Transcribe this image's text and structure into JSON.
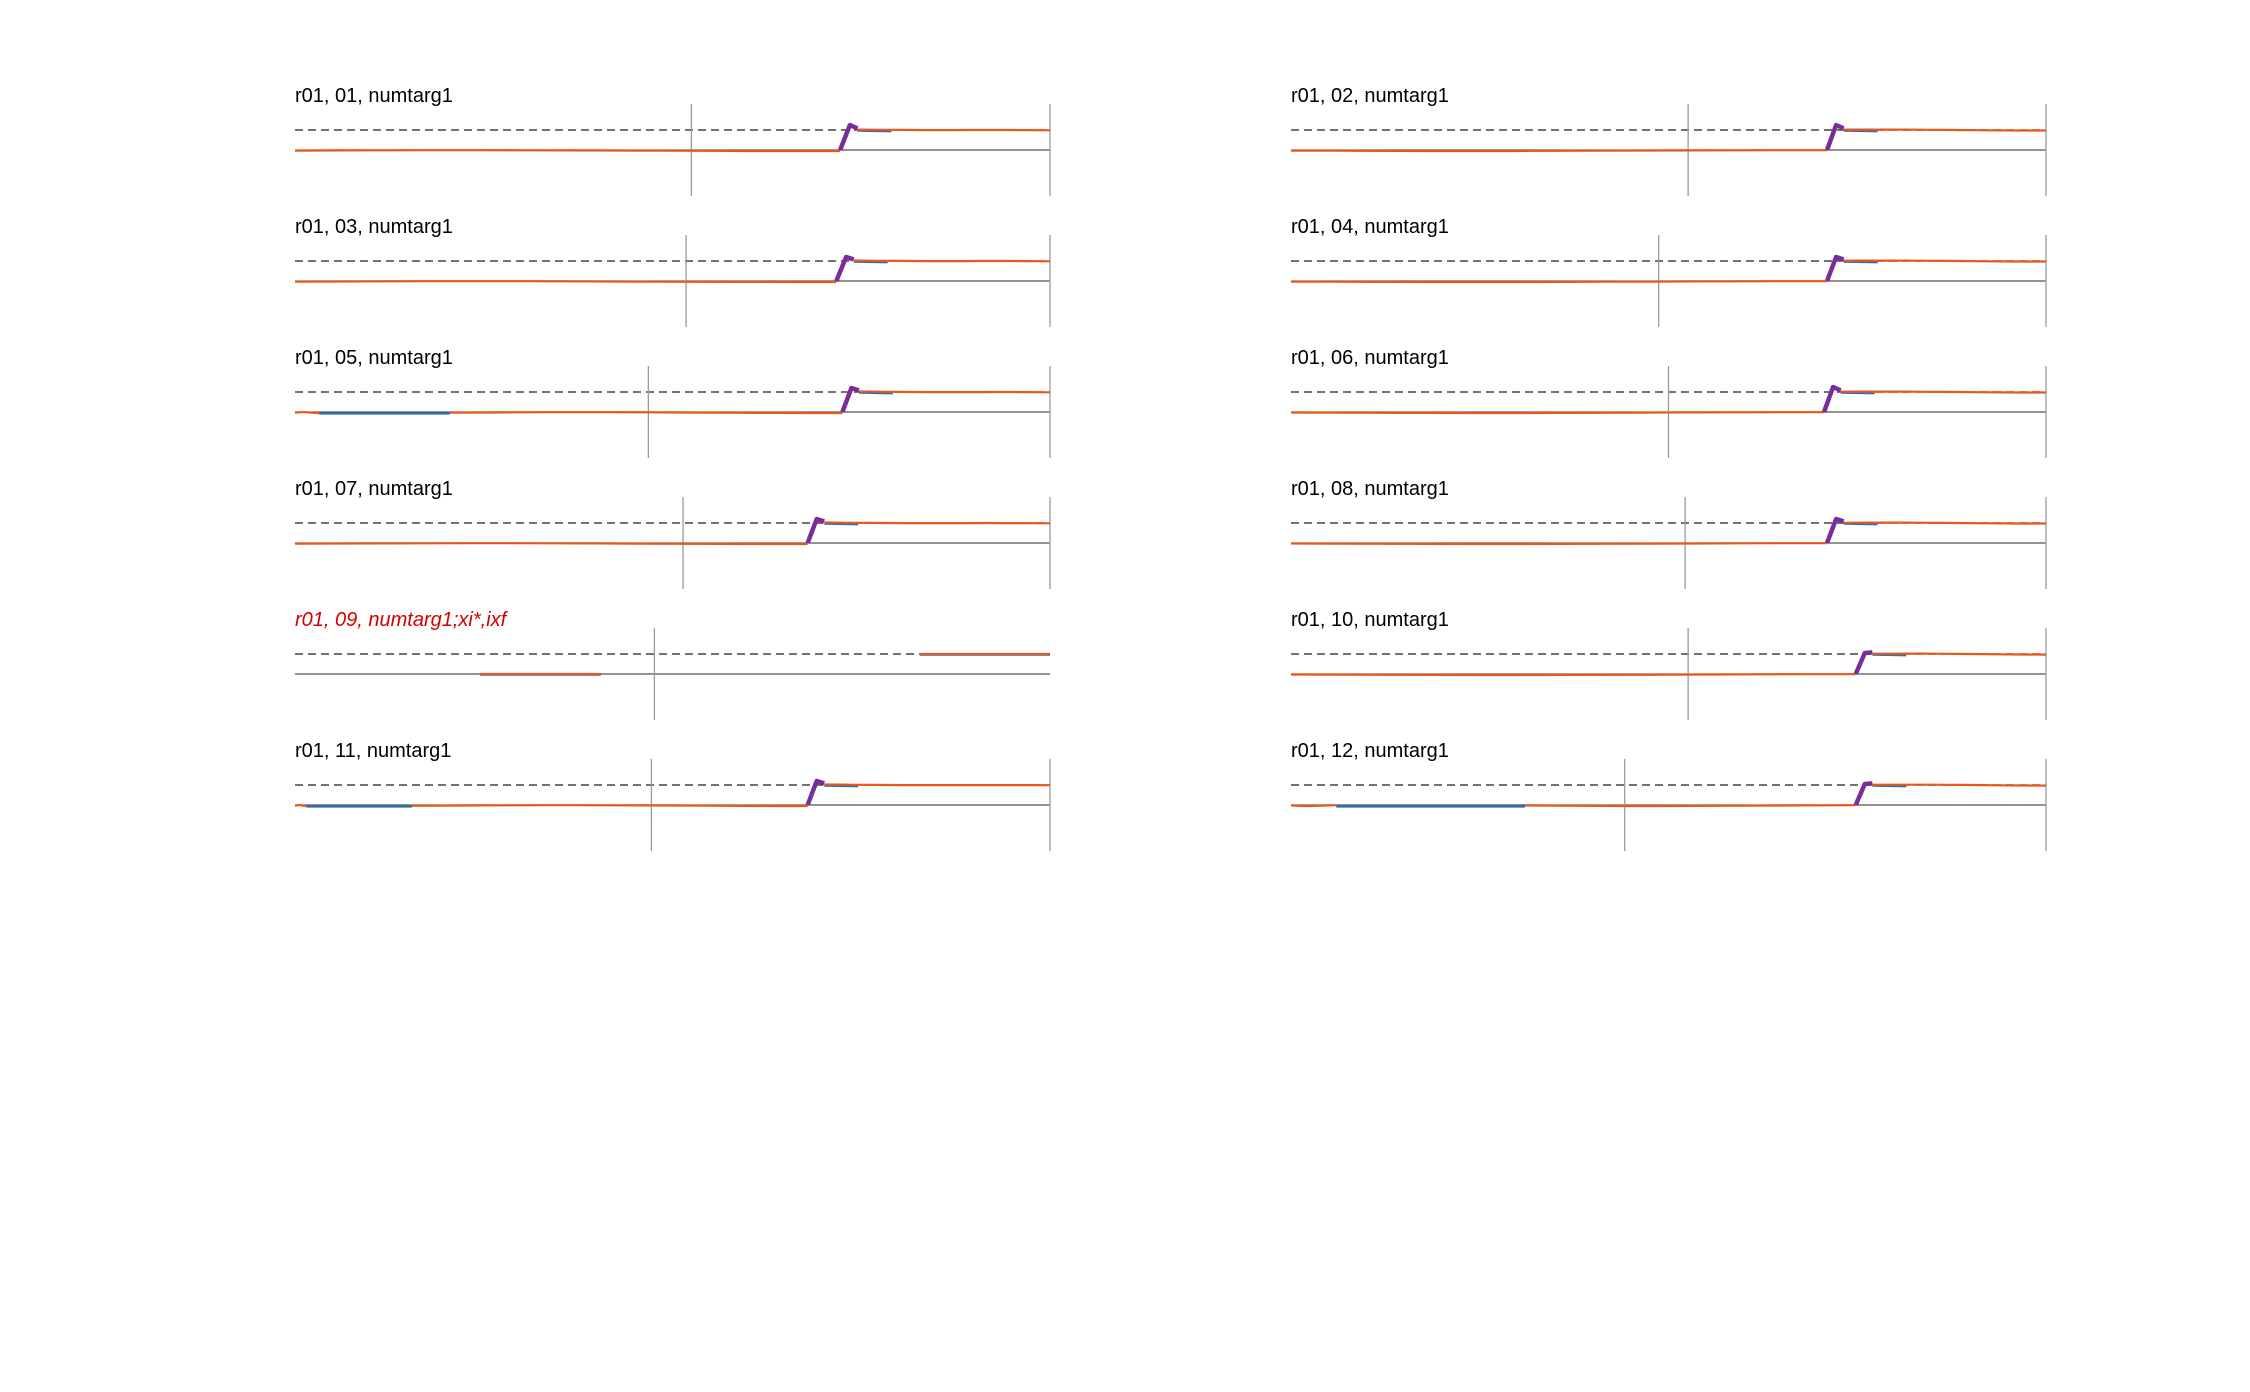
{
  "colors": {
    "trace_blue": "#2e6fb4",
    "trace_orange": "#e8581c",
    "transition_purple": "#7a2c9a",
    "flagged_title": "#d40000",
    "baseline": "#555555",
    "target_dashed": "#444444",
    "marker_line": "#9a9a9a"
  },
  "chart_data": [
    {
      "type": "line",
      "title": "r01, 01, numtarg1",
      "flagged": false,
      "xlim": [
        0,
        1
      ],
      "ylim": [
        0,
        1
      ],
      "baseline": 0,
      "target": 1,
      "markers": [
        0.525,
        1.0
      ],
      "gaps": [],
      "jump": {
        "start": 0.722,
        "end": 0.735,
        "peak": 1.25
      }
    },
    {
      "type": "line",
      "title": "r01, 02, numtarg1",
      "flagged": false,
      "xlim": [
        0,
        1
      ],
      "ylim": [
        0,
        1
      ],
      "baseline": 0,
      "target": 1,
      "markers": [
        0.526,
        1.0
      ],
      "gaps": [],
      "jump": {
        "start": 0.71,
        "end": 0.722,
        "peak": 1.25
      }
    },
    {
      "type": "line",
      "title": "r01, 03, numtarg1",
      "flagged": false,
      "xlim": [
        0,
        1
      ],
      "ylim": [
        0,
        1
      ],
      "baseline": 0,
      "target": 1,
      "markers": [
        0.518,
        1.0
      ],
      "gaps": [],
      "jump": {
        "start": 0.717,
        "end": 0.73,
        "peak": 1.2
      }
    },
    {
      "type": "line",
      "title": "r01, 04, numtarg1",
      "flagged": false,
      "xlim": [
        0,
        1
      ],
      "ylim": [
        0,
        1
      ],
      "baseline": 0,
      "target": 1,
      "markers": [
        0.487,
        1.0
      ],
      "gaps": [],
      "jump": {
        "start": 0.71,
        "end": 0.722,
        "peak": 1.2
      }
    },
    {
      "type": "line",
      "title": "r01, 05, numtarg1",
      "flagged": false,
      "xlim": [
        0,
        1
      ],
      "ylim": [
        0,
        1
      ],
      "baseline": 0,
      "target": 1,
      "markers": [
        0.468,
        1.0
      ],
      "gaps": [
        [
          0.032,
          0.205
        ]
      ],
      "jump": {
        "start": 0.725,
        "end": 0.737,
        "peak": 1.2
      }
    },
    {
      "type": "line",
      "title": "r01, 06, numtarg1",
      "flagged": false,
      "xlim": [
        0,
        1
      ],
      "ylim": [
        0,
        1
      ],
      "baseline": 0,
      "target": 1,
      "markers": [
        0.5,
        1.0
      ],
      "gaps": [],
      "jump": {
        "start": 0.706,
        "end": 0.718,
        "peak": 1.25
      }
    },
    {
      "type": "line",
      "title": "r01, 07, numtarg1",
      "flagged": false,
      "xlim": [
        0,
        1
      ],
      "ylim": [
        0,
        1
      ],
      "baseline": 0,
      "target": 1,
      "markers": [
        0.514,
        1.0
      ],
      "gaps": [],
      "jump": {
        "start": 0.679,
        "end": 0.691,
        "peak": 1.2
      }
    },
    {
      "type": "line",
      "title": "r01, 08, numtarg1",
      "flagged": false,
      "xlim": [
        0,
        1
      ],
      "ylim": [
        0,
        1
      ],
      "baseline": 0,
      "target": 1,
      "markers": [
        0.522,
        1.0
      ],
      "gaps": [],
      "jump": {
        "start": 0.71,
        "end": 0.722,
        "peak": 1.2
      }
    },
    {
      "type": "line",
      "title": "r01, 09, numtarg1;xi*,ixf",
      "flagged": true,
      "xlim": [
        0,
        1
      ],
      "ylim": [
        0,
        1
      ],
      "baseline": 0,
      "target": 1,
      "markers": [
        0.476
      ],
      "segments": [
        {
          "x": [
            0.245,
            0.405
          ],
          "y": 0
        },
        {
          "x": [
            0.828,
            1.0
          ],
          "y": 1
        }
      ]
    },
    {
      "type": "line",
      "title": "r01, 10, numtarg1",
      "flagged": false,
      "xlim": [
        0,
        1
      ],
      "ylim": [
        0,
        1
      ],
      "baseline": 0,
      "target": 1,
      "markers": [
        0.526,
        1.0
      ],
      "gaps": [],
      "jump": {
        "start": 0.748,
        "end": 0.76,
        "peak": 1.05
      }
    },
    {
      "type": "line",
      "title": "r01, 11, numtarg1",
      "flagged": false,
      "xlim": [
        0,
        1
      ],
      "ylim": [
        0,
        1
      ],
      "baseline": 0,
      "target": 1,
      "markers": [
        0.472,
        1.0
      ],
      "gaps": [
        [
          0.015,
          0.155
        ]
      ],
      "jump": {
        "start": 0.679,
        "end": 0.691,
        "peak": 1.2
      }
    },
    {
      "type": "line",
      "title": "r01, 12, numtarg1",
      "flagged": false,
      "xlim": [
        0,
        1
      ],
      "ylim": [
        0,
        1
      ],
      "baseline": 0,
      "target": 1,
      "markers": [
        0.442,
        1.0
      ],
      "gaps": [
        [
          0.06,
          0.31
        ]
      ],
      "jump": {
        "start": 0.748,
        "end": 0.76,
        "peak": 1.05
      }
    }
  ]
}
